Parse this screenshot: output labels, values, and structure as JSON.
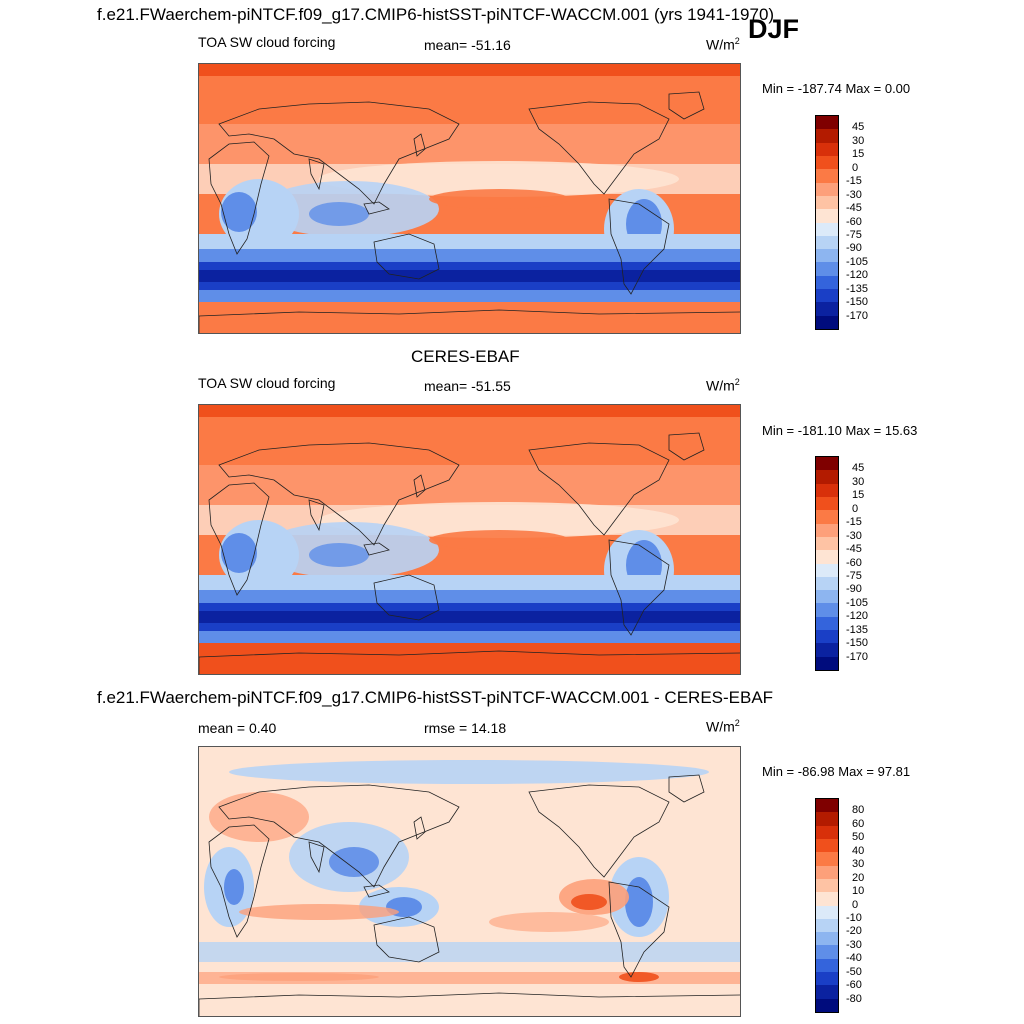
{
  "season": "DJF",
  "panels": [
    {
      "title": "f.e21.FWaerchem-piNTCF.f09_g17.CMIP6-histSST-piNTCF-WACCM.001 (yrs 1941-1970)",
      "left_label": "TOA SW cloud forcing",
      "center_label": "mean= -51.16",
      "units": "W/m",
      "units_sup": "2",
      "minmax": "Min = -187.74 Max =   0.00",
      "scale": "abs"
    },
    {
      "title": "CERES-EBAF",
      "left_label": "TOA SW cloud forcing",
      "center_label": "mean= -51.55",
      "units": "W/m",
      "units_sup": "2",
      "minmax": "Min = -181.10 Max =  15.63",
      "scale": "abs"
    },
    {
      "title": "f.e21.FWaerchem-piNTCF.f09_g17.CMIP6-histSST-piNTCF-WACCM.001 - CERES-EBAF",
      "left_label": "mean =   0.40",
      "center_label": "rmse =  14.18",
      "units": "W/m",
      "units_sup": "2",
      "minmax": "Min = -86.98 Max =  97.81",
      "scale": "diff"
    }
  ],
  "colorbars": {
    "abs": {
      "labels": [
        "45",
        "30",
        "15",
        "0",
        "-15",
        "-30",
        "-45",
        "-60",
        "-75",
        "-90",
        "-105",
        "-120",
        "-135",
        "-150",
        "-170"
      ],
      "colors": [
        "#7f0000",
        "#b31b00",
        "#d8300a",
        "#f0501c",
        "#fb7a45",
        "#fda07a",
        "#fec3a4",
        "#fee4d3",
        "#dceaf9",
        "#b7d3f5",
        "#8db5f0",
        "#5f8ee8",
        "#3464dc",
        "#1a3fc6",
        "#0b22a0",
        "#000c7d"
      ]
    },
    "diff": {
      "labels": [
        "80",
        "60",
        "50",
        "40",
        "30",
        "20",
        "10",
        "0",
        "-10",
        "-20",
        "-30",
        "-40",
        "-50",
        "-60",
        "-80"
      ],
      "colors": [
        "#7f0000",
        "#b31b00",
        "#d8300a",
        "#f0501c",
        "#fb7a45",
        "#fda07a",
        "#fec3a4",
        "#fee4d3",
        "#dceaf9",
        "#b7d3f5",
        "#8db5f0",
        "#5f8ee8",
        "#3464dc",
        "#1a3fc6",
        "#0b22a0",
        "#000c7d"
      ]
    }
  },
  "map_colors": {
    "ocean_base": "#fb7a45",
    "ocean_light": "#fda07a",
    "pale": "#fee4d3",
    "blue_light": "#b7d3f5",
    "blue_mid": "#5f8ee8",
    "blue_dark": "#1a3fc6",
    "blue_deep": "#0b22a0",
    "red": "#f0501c",
    "coast": "#222222"
  }
}
